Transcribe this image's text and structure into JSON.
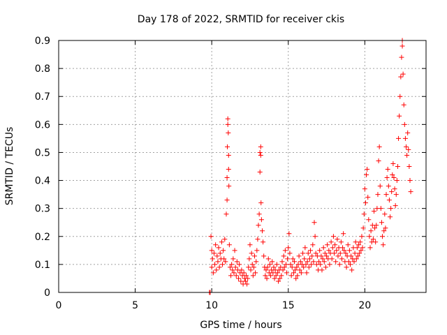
{
  "chart_data": {
    "type": "scatter",
    "title": "Day 178 of 2022, SRMTID for receiver ckis",
    "xlabel": "GPS time / hours",
    "ylabel": "SRMTID / TECUs",
    "xlim": [
      0,
      24
    ],
    "ylim": [
      0,
      0.9
    ],
    "xticks": [
      0,
      5,
      10,
      15,
      20
    ],
    "yticks": [
      0,
      0.1,
      0.2,
      0.3,
      0.4,
      0.5,
      0.6,
      0.7,
      0.8,
      0.9
    ],
    "ytick_labels": [
      "0",
      "0.1",
      "0.2",
      "0.3",
      "0.4",
      "0.5",
      "0.6",
      "0.7",
      "0.8",
      "0.9"
    ],
    "grid": true,
    "marker": "+",
    "color": "#ff0000",
    "series": [
      {
        "name": "SRMTID",
        "points": [
          [
            9.85,
            0.0
          ],
          [
            9.9,
            0.0
          ],
          [
            9.95,
            0.2
          ],
          [
            10.0,
            0.15
          ],
          [
            10.0,
            0.09
          ],
          [
            10.05,
            0.12
          ],
          [
            10.1,
            0.07
          ],
          [
            10.15,
            0.14
          ],
          [
            10.2,
            0.1
          ],
          [
            10.25,
            0.17
          ],
          [
            10.3,
            0.08
          ],
          [
            10.35,
            0.13
          ],
          [
            10.4,
            0.11
          ],
          [
            10.45,
            0.16
          ],
          [
            10.5,
            0.09
          ],
          [
            10.55,
            0.14
          ],
          [
            10.6,
            0.12
          ],
          [
            10.65,
            0.18
          ],
          [
            10.7,
            0.1
          ],
          [
            10.75,
            0.15
          ],
          [
            10.8,
            0.12
          ],
          [
            10.85,
            0.19
          ],
          [
            10.9,
            0.11
          ],
          [
            10.95,
            0.28
          ],
          [
            11.0,
            0.41
          ],
          [
            11.0,
            0.33
          ],
          [
            11.02,
            0.52
          ],
          [
            11.05,
            0.6
          ],
          [
            11.05,
            0.62
          ],
          [
            11.08,
            0.57
          ],
          [
            11.1,
            0.49
          ],
          [
            11.1,
            0.44
          ],
          [
            11.12,
            0.38
          ],
          [
            11.15,
            0.17
          ],
          [
            11.2,
            0.09
          ],
          [
            11.25,
            0.06
          ],
          [
            11.3,
            0.1
          ],
          [
            11.35,
            0.08
          ],
          [
            11.4,
            0.12
          ],
          [
            11.45,
            0.07
          ],
          [
            11.5,
            0.15
          ],
          [
            11.55,
            0.09
          ],
          [
            11.6,
            0.06
          ],
          [
            11.65,
            0.11
          ],
          [
            11.7,
            0.08
          ],
          [
            11.75,
            0.05
          ],
          [
            11.8,
            0.1
          ],
          [
            11.85,
            0.07
          ],
          [
            11.9,
            0.04
          ],
          [
            11.95,
            0.08
          ],
          [
            12.0,
            0.06
          ],
          [
            12.05,
            0.03
          ],
          [
            12.1,
            0.07
          ],
          [
            12.15,
            0.05
          ],
          [
            12.2,
            0.04
          ],
          [
            12.25,
            0.06
          ],
          [
            12.3,
            0.03
          ],
          [
            12.35,
            0.05
          ],
          [
            12.4,
            0.09
          ],
          [
            12.45,
            0.12
          ],
          [
            12.5,
            0.17
          ],
          [
            12.55,
            0.08
          ],
          [
            12.6,
            0.14
          ],
          [
            12.65,
            0.1
          ],
          [
            12.7,
            0.06
          ],
          [
            12.75,
            0.09
          ],
          [
            12.8,
            0.13
          ],
          [
            12.85,
            0.07
          ],
          [
            12.9,
            0.11
          ],
          [
            12.95,
            0.15
          ],
          [
            13.0,
            0.19
          ],
          [
            13.05,
            0.24
          ],
          [
            13.1,
            0.28
          ],
          [
            13.15,
            0.43
          ],
          [
            13.15,
            0.5
          ],
          [
            13.2,
            0.52
          ],
          [
            13.2,
            0.49
          ],
          [
            13.22,
            0.32
          ],
          [
            13.25,
            0.26
          ],
          [
            13.3,
            0.22
          ],
          [
            13.35,
            0.18
          ],
          [
            13.4,
            0.13
          ],
          [
            13.45,
            0.09
          ],
          [
            13.5,
            0.06
          ],
          [
            13.55,
            0.08
          ],
          [
            13.6,
            0.05
          ],
          [
            13.65,
            0.09
          ],
          [
            13.7,
            0.12
          ],
          [
            13.75,
            0.07
          ],
          [
            13.8,
            0.1
          ],
          [
            13.85,
            0.06
          ],
          [
            13.9,
            0.08
          ],
          [
            13.95,
            0.11
          ],
          [
            14.0,
            0.07
          ],
          [
            14.05,
            0.09
          ],
          [
            14.1,
            0.05
          ],
          [
            14.15,
            0.08
          ],
          [
            14.2,
            0.06
          ],
          [
            14.25,
            0.1
          ],
          [
            14.3,
            0.07
          ],
          [
            14.35,
            0.04
          ],
          [
            14.4,
            0.08
          ],
          [
            14.45,
            0.05
          ],
          [
            14.5,
            0.09
          ],
          [
            14.55,
            0.06
          ],
          [
            14.6,
            0.11
          ],
          [
            14.65,
            0.08
          ],
          [
            14.7,
            0.13
          ],
          [
            14.75,
            0.09
          ],
          [
            14.8,
            0.15
          ],
          [
            14.85,
            0.1
          ],
          [
            14.9,
            0.07
          ],
          [
            14.95,
            0.12
          ],
          [
            15.0,
            0.16
          ],
          [
            15.05,
            0.21
          ],
          [
            15.1,
            0.14
          ],
          [
            15.15,
            0.1
          ],
          [
            15.2,
            0.06
          ],
          [
            15.25,
            0.09
          ],
          [
            15.3,
            0.12
          ],
          [
            15.35,
            0.07
          ],
          [
            15.4,
            0.11
          ],
          [
            15.45,
            0.08
          ],
          [
            15.5,
            0.05
          ],
          [
            15.55,
            0.09
          ],
          [
            15.6,
            0.06
          ],
          [
            15.65,
            0.1
          ],
          [
            15.7,
            0.13
          ],
          [
            15.75,
            0.08
          ],
          [
            15.8,
            0.11
          ],
          [
            15.85,
            0.07
          ],
          [
            15.9,
            0.1
          ],
          [
            15.95,
            0.14
          ],
          [
            16.0,
            0.09
          ],
          [
            16.05,
            0.12
          ],
          [
            16.1,
            0.16
          ],
          [
            16.15,
            0.1
          ],
          [
            16.2,
            0.07
          ],
          [
            16.25,
            0.11
          ],
          [
            16.3,
            0.14
          ],
          [
            16.35,
            0.09
          ],
          [
            16.4,
            0.12
          ],
          [
            16.45,
            0.15
          ],
          [
            16.5,
            0.1
          ],
          [
            16.55,
            0.13
          ],
          [
            16.6,
            0.17
          ],
          [
            16.65,
            0.11
          ],
          [
            16.7,
            0.25
          ],
          [
            16.75,
            0.2
          ],
          [
            16.8,
            0.14
          ],
          [
            16.85,
            0.1
          ],
          [
            16.9,
            0.13
          ],
          [
            16.95,
            0.08
          ],
          [
            17.0,
            0.11
          ],
          [
            17.05,
            0.15
          ],
          [
            17.1,
            0.1
          ],
          [
            17.15,
            0.13
          ],
          [
            17.2,
            0.08
          ],
          [
            17.25,
            0.12
          ],
          [
            17.3,
            0.16
          ],
          [
            17.35,
            0.11
          ],
          [
            17.4,
            0.14
          ],
          [
            17.45,
            0.09
          ],
          [
            17.5,
            0.13
          ],
          [
            17.55,
            0.17
          ],
          [
            17.6,
            0.12
          ],
          [
            17.65,
            0.15
          ],
          [
            17.7,
            0.1
          ],
          [
            17.75,
            0.14
          ],
          [
            17.8,
            0.18
          ],
          [
            17.85,
            0.12
          ],
          [
            17.9,
            0.16
          ],
          [
            17.95,
            0.2
          ],
          [
            18.0,
            0.14
          ],
          [
            18.05,
            0.17
          ],
          [
            18.1,
            0.11
          ],
          [
            18.15,
            0.15
          ],
          [
            18.2,
            0.19
          ],
          [
            18.25,
            0.13
          ],
          [
            18.3,
            0.16
          ],
          [
            18.35,
            0.1
          ],
          [
            18.4,
            0.14
          ],
          [
            18.45,
            0.18
          ],
          [
            18.5,
            0.12
          ],
          [
            18.55,
            0.16
          ],
          [
            18.6,
            0.21
          ],
          [
            18.65,
            0.15
          ],
          [
            18.7,
            0.11
          ],
          [
            18.75,
            0.14
          ],
          [
            18.8,
            0.09
          ],
          [
            18.85,
            0.13
          ],
          [
            18.9,
            0.17
          ],
          [
            18.95,
            0.11
          ],
          [
            19.0,
            0.15
          ],
          [
            19.05,
            0.1
          ],
          [
            19.1,
            0.13
          ],
          [
            19.15,
            0.08
          ],
          [
            19.2,
            0.12
          ],
          [
            19.25,
            0.16
          ],
          [
            19.3,
            0.11
          ],
          [
            19.35,
            0.14
          ],
          [
            19.4,
            0.18
          ],
          [
            19.45,
            0.12
          ],
          [
            19.5,
            0.16
          ],
          [
            19.55,
            0.13
          ],
          [
            19.6,
            0.17
          ],
          [
            19.65,
            0.14
          ],
          [
            19.7,
            0.18
          ],
          [
            19.75,
            0.15
          ],
          [
            19.8,
            0.2
          ],
          [
            19.85,
            0.16
          ],
          [
            19.9,
            0.23
          ],
          [
            19.95,
            0.28
          ],
          [
            20.0,
            0.37
          ],
          [
            20.05,
            0.32
          ],
          [
            20.1,
            0.42
          ],
          [
            20.15,
            0.44
          ],
          [
            20.2,
            0.34
          ],
          [
            20.25,
            0.26
          ],
          [
            20.3,
            0.2
          ],
          [
            20.35,
            0.16
          ],
          [
            20.4,
            0.22
          ],
          [
            20.45,
            0.18
          ],
          [
            20.5,
            0.24
          ],
          [
            20.55,
            0.19
          ],
          [
            20.6,
            0.29
          ],
          [
            20.65,
            0.23
          ],
          [
            20.7,
            0.18
          ],
          [
            20.75,
            0.24
          ],
          [
            20.8,
            0.3
          ],
          [
            20.85,
            0.35
          ],
          [
            20.9,
            0.47
          ],
          [
            20.95,
            0.52
          ],
          [
            21.0,
            0.38
          ],
          [
            21.05,
            0.3
          ],
          [
            21.1,
            0.25
          ],
          [
            21.15,
            0.2
          ],
          [
            21.2,
            0.17
          ],
          [
            21.25,
            0.22
          ],
          [
            21.3,
            0.28
          ],
          [
            21.35,
            0.23
          ],
          [
            21.4,
            0.35
          ],
          [
            21.45,
            0.41
          ],
          [
            21.5,
            0.44
          ],
          [
            21.55,
            0.38
          ],
          [
            21.6,
            0.33
          ],
          [
            21.65,
            0.27
          ],
          [
            21.7,
            0.3
          ],
          [
            21.75,
            0.36
          ],
          [
            21.8,
            0.42
          ],
          [
            21.85,
            0.46
          ],
          [
            21.9,
            0.41
          ],
          [
            21.95,
            0.37
          ],
          [
            22.0,
            0.31
          ],
          [
            22.05,
            0.35
          ],
          [
            22.1,
            0.4
          ],
          [
            22.15,
            0.45
          ],
          [
            22.2,
            0.55
          ],
          [
            22.25,
            0.63
          ],
          [
            22.3,
            0.7
          ],
          [
            22.35,
            0.77
          ],
          [
            22.4,
            0.84
          ],
          [
            22.45,
            0.88
          ],
          [
            22.45,
            0.9
          ],
          [
            22.5,
            0.78
          ],
          [
            22.55,
            0.67
          ],
          [
            22.6,
            0.6
          ],
          [
            22.65,
            0.55
          ],
          [
            22.7,
            0.52
          ],
          [
            22.75,
            0.49
          ],
          [
            22.8,
            0.57
          ],
          [
            22.85,
            0.51
          ],
          [
            22.9,
            0.45
          ],
          [
            22.95,
            0.4
          ],
          [
            23.0,
            0.36
          ]
        ]
      }
    ]
  }
}
